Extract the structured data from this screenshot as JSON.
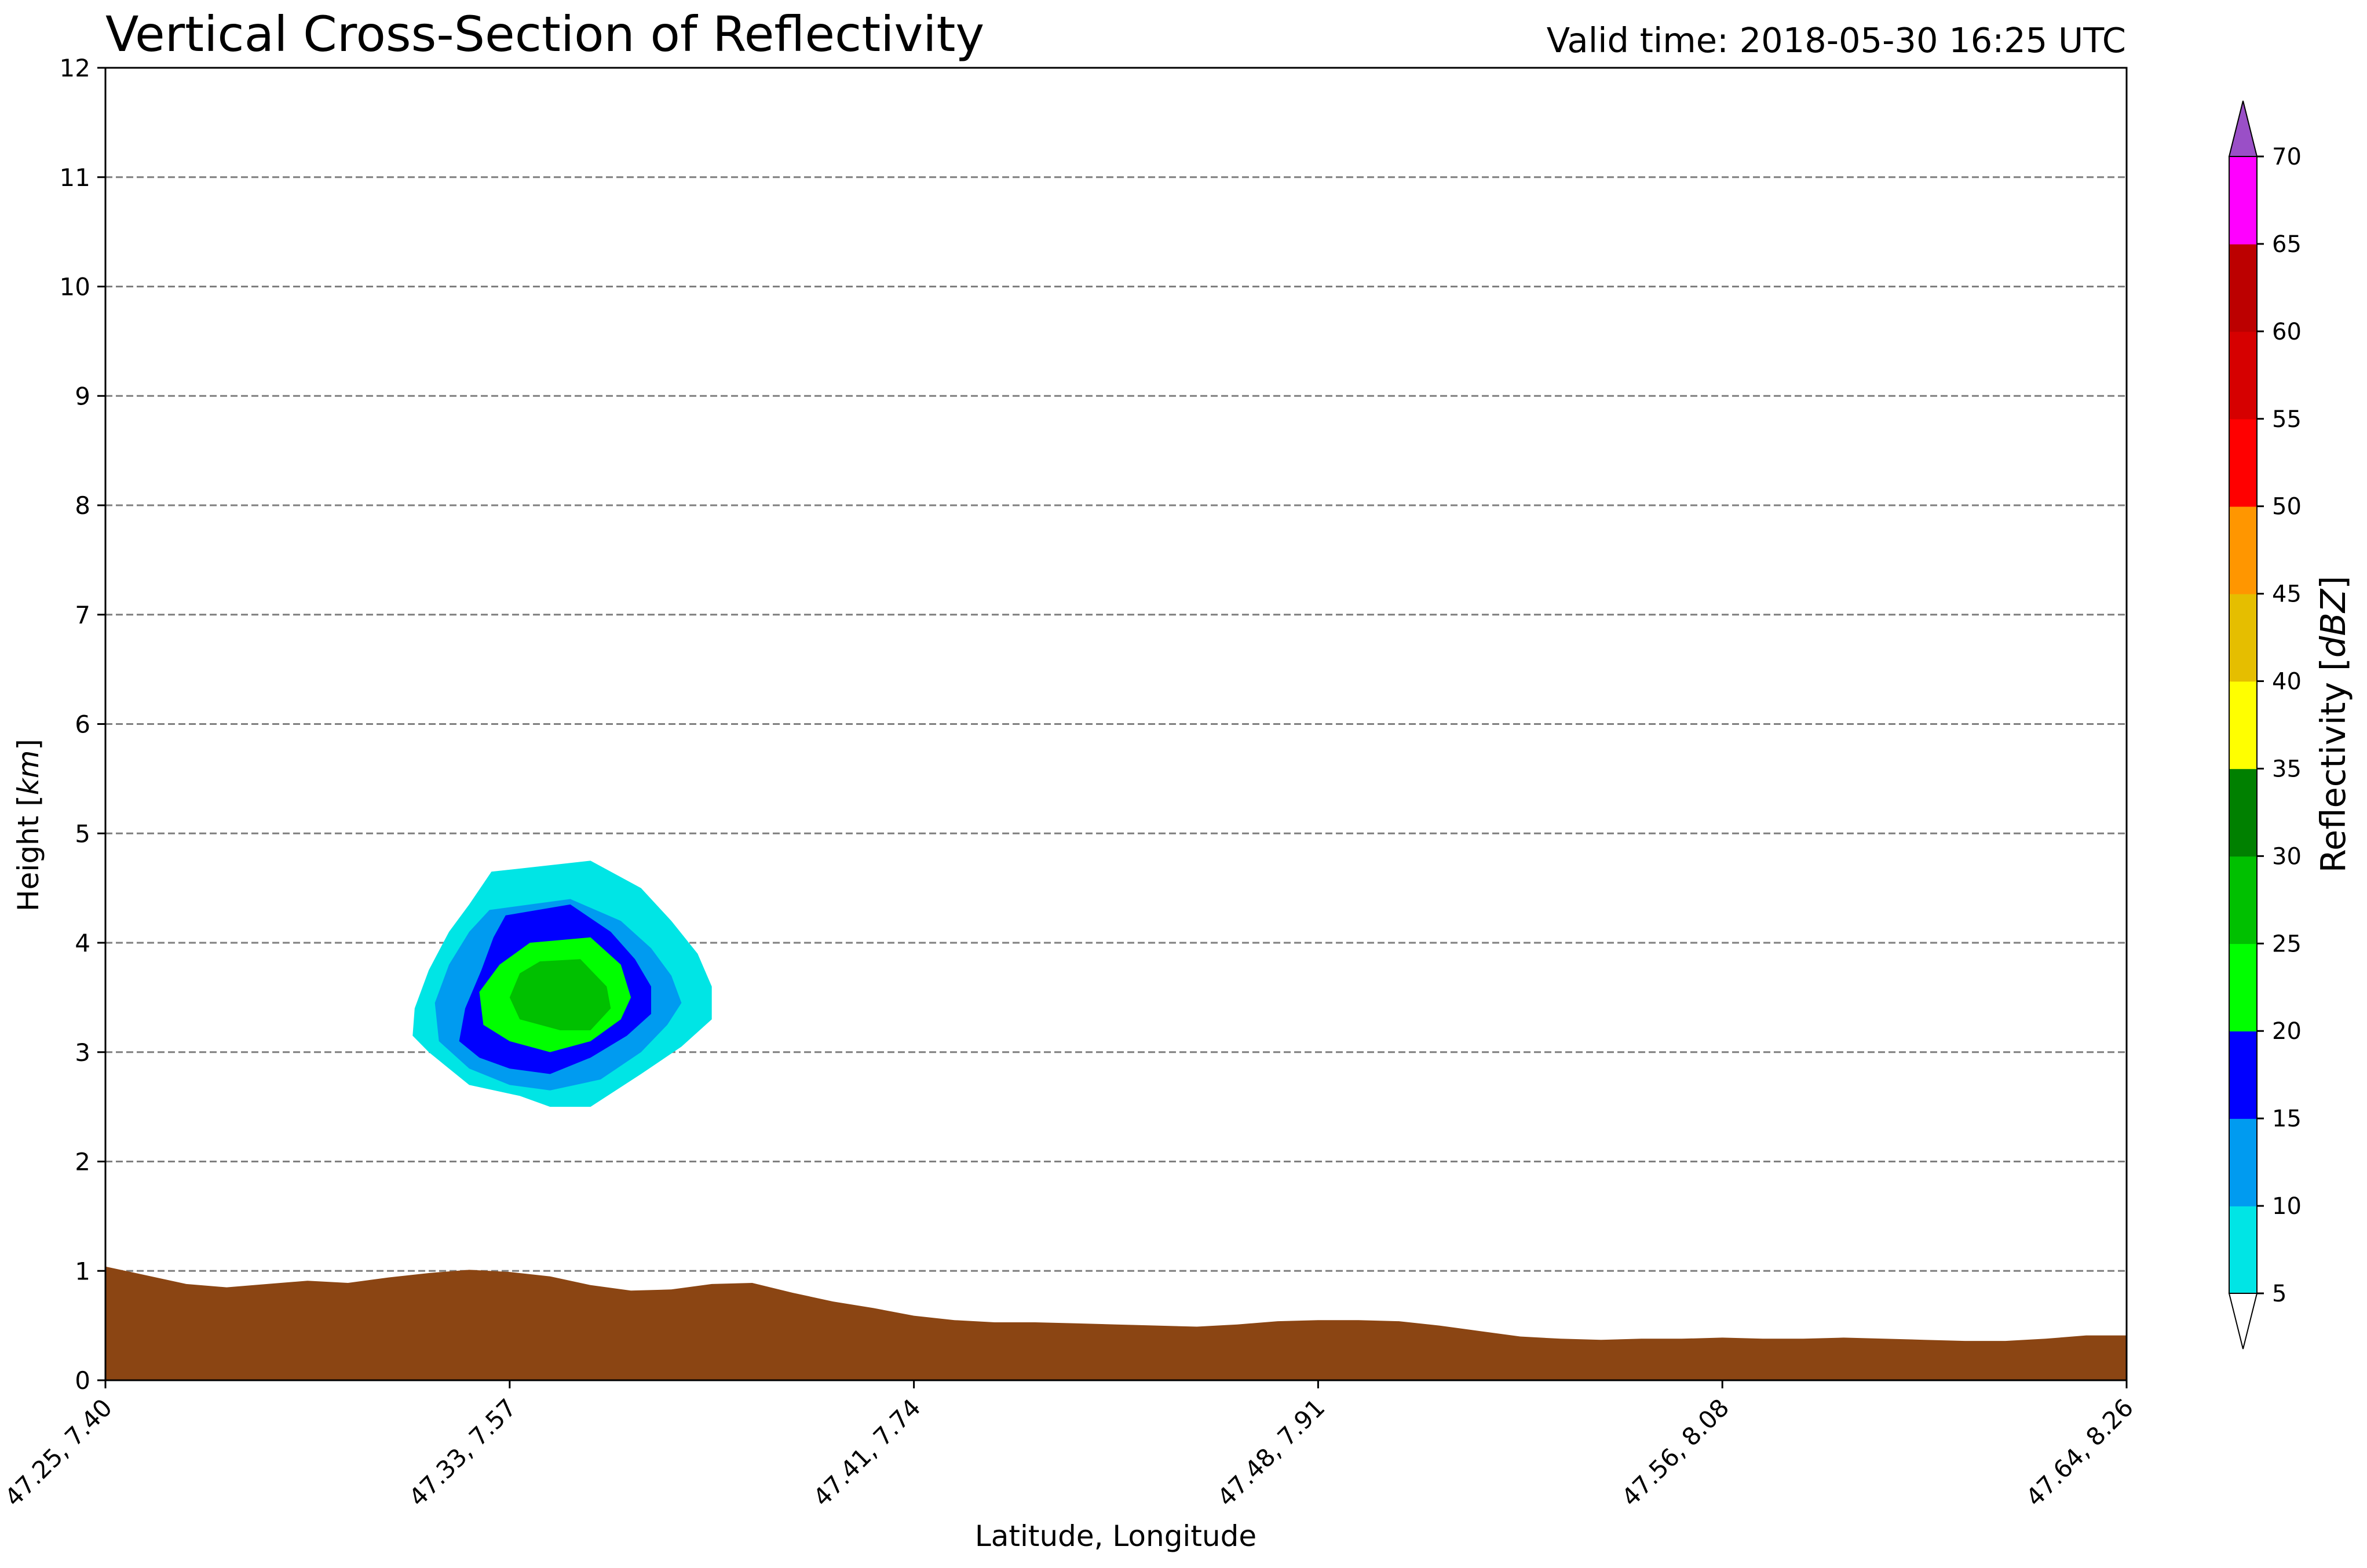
{
  "chart_data": {
    "type": "contour",
    "title": "Vertical Cross-Section of Reflectivity",
    "subtitle": "Valid time: 2018-05-30 16:25 UTC",
    "xlabel": "Latitude, Longitude",
    "ylabel": "Height [km]",
    "ylim": [
      0,
      12
    ],
    "yticks": [
      0,
      1,
      2,
      3,
      4,
      5,
      6,
      7,
      8,
      9,
      10,
      11,
      12
    ],
    "xlim": [
      0,
      1
    ],
    "xticks": [
      {
        "pos": 0.0,
        "label": "47.25, 7.40"
      },
      {
        "pos": 0.2,
        "label": "47.33, 7.57"
      },
      {
        "pos": 0.4,
        "label": "47.41, 7.74"
      },
      {
        "pos": 0.6,
        "label": "47.48, 7.91"
      },
      {
        "pos": 0.8,
        "label": "47.56, 8.08"
      },
      {
        "pos": 1.0,
        "label": "47.64, 8.26"
      }
    ],
    "grid": "horizontal dashed",
    "terrain": {
      "color": "#8B4513",
      "x": [
        0.0,
        0.02,
        0.04,
        0.06,
        0.08,
        0.1,
        0.12,
        0.14,
        0.16,
        0.18,
        0.2,
        0.22,
        0.24,
        0.26,
        0.28,
        0.3,
        0.32,
        0.34,
        0.36,
        0.38,
        0.4,
        0.42,
        0.44,
        0.46,
        0.48,
        0.5,
        0.52,
        0.54,
        0.56,
        0.58,
        0.6,
        0.62,
        0.64,
        0.66,
        0.68,
        0.7,
        0.72,
        0.74,
        0.76,
        0.78,
        0.8,
        0.82,
        0.84,
        0.86,
        0.88,
        0.9,
        0.92,
        0.94,
        0.96,
        0.98,
        1.0
      ],
      "height_km": [
        1.04,
        0.96,
        0.88,
        0.85,
        0.88,
        0.91,
        0.89,
        0.94,
        0.98,
        1.01,
        0.99,
        0.95,
        0.87,
        0.82,
        0.83,
        0.88,
        0.89,
        0.8,
        0.72,
        0.66,
        0.59,
        0.55,
        0.53,
        0.53,
        0.52,
        0.51,
        0.5,
        0.49,
        0.51,
        0.54,
        0.55,
        0.55,
        0.54,
        0.5,
        0.45,
        0.4,
        0.38,
        0.37,
        0.38,
        0.38,
        0.39,
        0.38,
        0.38,
        0.39,
        0.38,
        0.37,
        0.36,
        0.36,
        0.38,
        0.41,
        0.41
      ]
    },
    "contours": [
      {
        "level": 5,
        "color": "#00E5E5",
        "points": [
          [
            0.191,
            4.65
          ],
          [
            0.24,
            4.75
          ],
          [
            0.265,
            4.5
          ],
          [
            0.28,
            4.2
          ],
          [
            0.293,
            3.9
          ],
          [
            0.3,
            3.6
          ],
          [
            0.3,
            3.3
          ],
          [
            0.285,
            3.05
          ],
          [
            0.265,
            2.8
          ],
          [
            0.24,
            2.5
          ],
          [
            0.22,
            2.5
          ],
          [
            0.205,
            2.6
          ],
          [
            0.18,
            2.7
          ],
          [
            0.17,
            2.85
          ],
          [
            0.16,
            3.0
          ],
          [
            0.152,
            3.15
          ],
          [
            0.153,
            3.4
          ],
          [
            0.16,
            3.75
          ],
          [
            0.17,
            4.1
          ],
          [
            0.18,
            4.35
          ]
        ]
      },
      {
        "level": 10,
        "color": "#009BF0",
        "points": [
          [
            0.19,
            4.3
          ],
          [
            0.23,
            4.4
          ],
          [
            0.255,
            4.2
          ],
          [
            0.27,
            3.95
          ],
          [
            0.28,
            3.7
          ],
          [
            0.285,
            3.45
          ],
          [
            0.278,
            3.25
          ],
          [
            0.265,
            3.0
          ],
          [
            0.245,
            2.75
          ],
          [
            0.22,
            2.65
          ],
          [
            0.2,
            2.7
          ],
          [
            0.18,
            2.85
          ],
          [
            0.165,
            3.1
          ],
          [
            0.163,
            3.45
          ],
          [
            0.17,
            3.8
          ],
          [
            0.18,
            4.1
          ]
        ]
      },
      {
        "level": 15,
        "color": "#0000FF",
        "points": [
          [
            0.198,
            4.25
          ],
          [
            0.23,
            4.35
          ],
          [
            0.25,
            4.1
          ],
          [
            0.262,
            3.85
          ],
          [
            0.27,
            3.6
          ],
          [
            0.27,
            3.35
          ],
          [
            0.258,
            3.15
          ],
          [
            0.24,
            2.95
          ],
          [
            0.22,
            2.8
          ],
          [
            0.2,
            2.85
          ],
          [
            0.185,
            2.95
          ],
          [
            0.175,
            3.1
          ],
          [
            0.178,
            3.4
          ],
          [
            0.186,
            3.75
          ],
          [
            0.192,
            4.05
          ]
        ]
      },
      {
        "level": 20,
        "color": "#00FF00",
        "points": [
          [
            0.21,
            4.0
          ],
          [
            0.24,
            4.05
          ],
          [
            0.255,
            3.8
          ],
          [
            0.26,
            3.5
          ],
          [
            0.255,
            3.3
          ],
          [
            0.24,
            3.1
          ],
          [
            0.22,
            3.0
          ],
          [
            0.2,
            3.1
          ],
          [
            0.187,
            3.25
          ],
          [
            0.185,
            3.55
          ],
          [
            0.195,
            3.8
          ]
        ]
      },
      {
        "level": 25,
        "color": "#00C000",
        "points": [
          [
            0.215,
            3.83
          ],
          [
            0.235,
            3.85
          ],
          [
            0.248,
            3.6
          ],
          [
            0.25,
            3.4
          ],
          [
            0.24,
            3.2
          ],
          [
            0.225,
            3.2
          ],
          [
            0.205,
            3.3
          ],
          [
            0.2,
            3.5
          ],
          [
            0.205,
            3.72
          ]
        ]
      }
    ],
    "colorbar": {
      "label": "Reflectivity [dBZ]",
      "bounds": [
        5,
        10,
        15,
        20,
        25,
        30,
        35,
        40,
        45,
        50,
        55,
        60,
        65,
        70
      ],
      "tick_labels": [
        "5",
        "10",
        "15",
        "20",
        "25",
        "30",
        "35",
        "40",
        "45",
        "50",
        "55",
        "60",
        "65",
        "70"
      ],
      "colors": [
        "#00E5E5",
        "#009BF0",
        "#0000FF",
        "#00FF00",
        "#00C000",
        "#008000",
        "#FFFF00",
        "#E5BE00",
        "#FF9600",
        "#FF0000",
        "#D60000",
        "#BC0000",
        "#FF00FF"
      ],
      "extend_min_color": "#FFFFFF",
      "extend_max_color": "#9A4FC7"
    }
  }
}
